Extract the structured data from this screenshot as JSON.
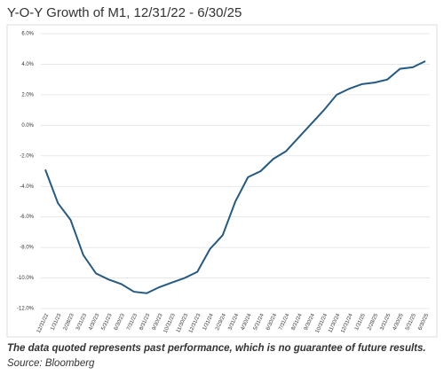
{
  "chart_data": {
    "type": "line",
    "title": "Y-O-Y Growth of M1, 12/31/22 - 6/30/25",
    "categories": [
      "12/31/22",
      "1/31/23",
      "2/28/23",
      "3/31/23",
      "4/30/23",
      "5/31/23",
      "6/30/23",
      "7/31/23",
      "8/31/23",
      "9/30/23",
      "10/31/23",
      "11/30/23",
      "12/31/23",
      "1/31/24",
      "2/29/24",
      "3/31/24",
      "4/30/24",
      "5/31/24",
      "6/30/24",
      "7/31/24",
      "8/31/24",
      "9/30/24",
      "10/31/24",
      "11/30/24",
      "12/31/24",
      "1/31/25",
      "2/28/25",
      "3/31/25",
      "4/30/25",
      "5/31/25",
      "6/30/25"
    ],
    "values": [
      -2.9,
      -5.1,
      -6.2,
      -8.5,
      -9.7,
      -10.1,
      -10.4,
      -10.9,
      -11.0,
      -10.6,
      -10.3,
      -10.0,
      -9.6,
      -8.1,
      -7.2,
      -5.0,
      -3.4,
      -3.0,
      -2.2,
      -1.7,
      -0.8,
      0.1,
      1.0,
      2.0,
      2.4,
      2.7,
      2.8,
      3.0,
      3.7,
      3.8,
      4.2
    ],
    "color": "#245a84",
    "ylim": [
      -12,
      6
    ],
    "yticks": [
      {
        "value": -12,
        "label": "-12.0%"
      },
      {
        "value": -10,
        "label": "-10.0%"
      },
      {
        "value": -8,
        "label": "-8.0%"
      },
      {
        "value": -6,
        "label": "-6.0%"
      },
      {
        "value": -4,
        "label": "-4.0%"
      },
      {
        "value": -2,
        "label": "-2.0%"
      },
      {
        "value": 0,
        "label": "0.0%"
      },
      {
        "value": 2,
        "label": "2.0%"
      },
      {
        "value": 4,
        "label": "4.0%"
      },
      {
        "value": 6,
        "label": "6.0%"
      }
    ],
    "grid": true,
    "note": "The data quoted represents past performance, which is no guarantee of future results.",
    "source": "Source: Bloomberg"
  }
}
